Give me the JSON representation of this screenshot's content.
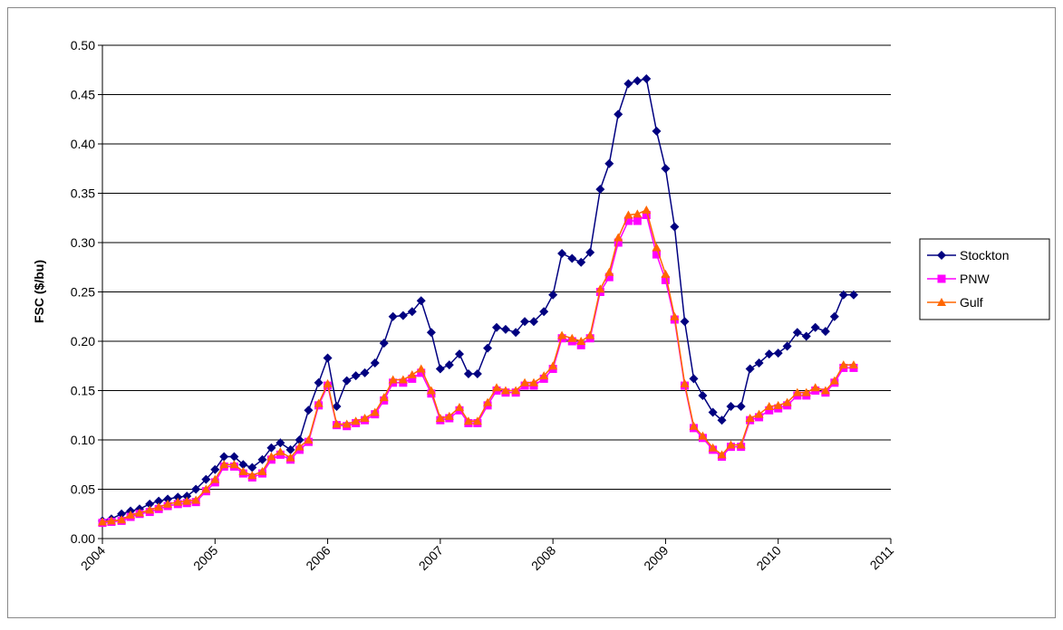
{
  "chart_data": {
    "type": "line",
    "y_label": "FSC ($/bu)",
    "x": [
      2004,
      2004.08,
      2004.17,
      2004.25,
      2004.33,
      2004.42,
      2004.5,
      2004.58,
      2004.67,
      2004.75,
      2004.83,
      2004.92,
      2005,
      2005.08,
      2005.17,
      2005.25,
      2005.33,
      2005.42,
      2005.5,
      2005.58,
      2005.67,
      2005.75,
      2005.83,
      2005.92,
      2006,
      2006.08,
      2006.17,
      2006.25,
      2006.33,
      2006.42,
      2006.5,
      2006.58,
      2006.67,
      2006.75,
      2006.83,
      2006.92,
      2007,
      2007.08,
      2007.17,
      2007.25,
      2007.33,
      2007.42,
      2007.5,
      2007.58,
      2007.67,
      2007.75,
      2007.83,
      2007.92,
      2008,
      2008.08,
      2008.17,
      2008.25,
      2008.33,
      2008.42,
      2008.5,
      2008.58,
      2008.67,
      2008.75,
      2008.83,
      2008.92,
      2009,
      2009.08,
      2009.17,
      2009.25,
      2009.33,
      2009.42,
      2009.5,
      2009.58,
      2009.67,
      2009.75,
      2009.83,
      2009.92,
      2010,
      2010.08,
      2010.17,
      2010.25,
      2010.33,
      2010.42,
      2010.5,
      2010.58,
      2010.67
    ],
    "series": [
      {
        "name": "Stockton",
        "color": "#000080",
        "marker": "diamond",
        "values": [
          0.018,
          0.02,
          0.025,
          0.028,
          0.03,
          0.035,
          0.038,
          0.04,
          0.042,
          0.043,
          0.05,
          0.06,
          0.07,
          0.083,
          0.083,
          0.075,
          0.072,
          0.08,
          0.092,
          0.097,
          0.09,
          0.1,
          0.13,
          0.158,
          0.183,
          0.134,
          0.16,
          0.165,
          0.168,
          0.178,
          0.198,
          0.225,
          0.226,
          0.23,
          0.241,
          0.209,
          0.172,
          0.176,
          0.187,
          0.167,
          0.167,
          0.193,
          0.214,
          0.212,
          0.209,
          0.22,
          0.22,
          0.23,
          0.247,
          0.289,
          0.284,
          0.28,
          0.29,
          0.354,
          0.38,
          0.43,
          0.461,
          0.464,
          0.466,
          0.413,
          0.375,
          0.316,
          0.22,
          0.162,
          0.145,
          0.128,
          0.12,
          0.134,
          0.134,
          0.172,
          0.178,
          0.187,
          0.188,
          0.195,
          0.209,
          0.205,
          0.214,
          0.21,
          0.225,
          0.247,
          0.247
        ]
      },
      {
        "name": "PNW",
        "color": "#ff00ff",
        "marker": "square",
        "values": [
          0.016,
          0.017,
          0.018,
          0.022,
          0.025,
          0.027,
          0.03,
          0.033,
          0.035,
          0.036,
          0.037,
          0.048,
          0.057,
          0.073,
          0.073,
          0.066,
          0.062,
          0.066,
          0.08,
          0.085,
          0.08,
          0.09,
          0.098,
          0.135,
          0.155,
          0.115,
          0.114,
          0.117,
          0.12,
          0.126,
          0.14,
          0.158,
          0.158,
          0.162,
          0.168,
          0.147,
          0.12,
          0.122,
          0.13,
          0.117,
          0.117,
          0.135,
          0.15,
          0.148,
          0.148,
          0.155,
          0.155,
          0.162,
          0.172,
          0.203,
          0.2,
          0.196,
          0.203,
          0.25,
          0.265,
          0.3,
          0.322,
          0.322,
          0.328,
          0.288,
          0.262,
          0.222,
          0.155,
          0.112,
          0.102,
          0.09,
          0.083,
          0.093,
          0.093,
          0.12,
          0.123,
          0.13,
          0.132,
          0.135,
          0.145,
          0.145,
          0.15,
          0.148,
          0.158,
          0.173,
          0.173
        ]
      },
      {
        "name": "Gulf",
        "color": "#ff6600",
        "marker": "triangle",
        "values": [
          0.017,
          0.018,
          0.019,
          0.024,
          0.026,
          0.029,
          0.032,
          0.035,
          0.037,
          0.038,
          0.039,
          0.05,
          0.06,
          0.075,
          0.075,
          0.068,
          0.064,
          0.068,
          0.083,
          0.088,
          0.082,
          0.093,
          0.1,
          0.137,
          0.157,
          0.116,
          0.116,
          0.119,
          0.122,
          0.128,
          0.143,
          0.161,
          0.161,
          0.166,
          0.172,
          0.15,
          0.122,
          0.124,
          0.133,
          0.119,
          0.119,
          0.138,
          0.153,
          0.15,
          0.15,
          0.158,
          0.158,
          0.165,
          0.175,
          0.206,
          0.203,
          0.2,
          0.206,
          0.253,
          0.27,
          0.305,
          0.328,
          0.329,
          0.333,
          0.295,
          0.268,
          0.225,
          0.157,
          0.114,
          0.104,
          0.092,
          0.085,
          0.095,
          0.095,
          0.122,
          0.126,
          0.134,
          0.135,
          0.138,
          0.148,
          0.148,
          0.153,
          0.15,
          0.16,
          0.176,
          0.176
        ]
      }
    ],
    "xlim": [
      2004,
      2011
    ],
    "xticks": [
      2004,
      2005,
      2006,
      2007,
      2008,
      2009,
      2010,
      2011
    ],
    "ylim": [
      0,
      0.5
    ],
    "yticks": [
      {
        "value": 0,
        "label": "0.00"
      },
      {
        "value": 0.05,
        "label": "0.05"
      },
      {
        "value": 0.1,
        "label": "0.10"
      },
      {
        "value": 0.15,
        "label": "0.15"
      },
      {
        "value": 0.2,
        "label": "0.20"
      },
      {
        "value": 0.25,
        "label": "0.25"
      },
      {
        "value": 0.3,
        "label": "0.30"
      },
      {
        "value": 0.35,
        "label": "0.35"
      },
      {
        "value": 0.4,
        "label": "0.40"
      },
      {
        "value": 0.45,
        "label": "0.45"
      },
      {
        "value": 0.5,
        "label": "0.50"
      }
    ],
    "grid": true,
    "legend": "right"
  }
}
